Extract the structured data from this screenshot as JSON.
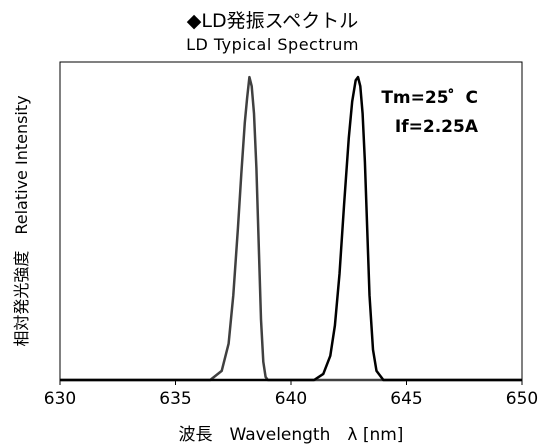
{
  "chart_data": {
    "type": "line",
    "title": "◆LD発振スペクトル",
    "subtitle": "LD Typical Spectrum",
    "xlabel": "波長　Wavelength　λ [nm]",
    "ylabel": "相対発光強度　Relative Intensity",
    "xlim": [
      630,
      650
    ],
    "ylim": [
      0,
      1.05
    ],
    "x_ticks": [
      630,
      635,
      640,
      645,
      650
    ],
    "y_ticks": [],
    "grid": false,
    "legend": "none",
    "annotations": [
      "Tm=25゜C",
      "If=2.25A"
    ],
    "series": [
      {
        "color": "#404040",
        "x": [
          630,
          636.5,
          637.0,
          637.3,
          637.5,
          637.7,
          637.85,
          638.0,
          638.1,
          638.2,
          638.3,
          638.4,
          638.5,
          638.6,
          638.7,
          638.8,
          638.9,
          639.0,
          650
        ],
        "y": [
          0.0,
          0.0,
          0.03,
          0.12,
          0.28,
          0.5,
          0.68,
          0.85,
          0.93,
          1.0,
          0.97,
          0.88,
          0.7,
          0.45,
          0.2,
          0.06,
          0.01,
          0.0,
          0.0
        ]
      },
      {
        "color": "#000000",
        "x": [
          630,
          641.0,
          641.4,
          641.7,
          641.9,
          642.1,
          642.3,
          642.5,
          642.65,
          642.8,
          642.9,
          643.0,
          643.1,
          643.2,
          643.3,
          643.4,
          643.55,
          643.7,
          644.0,
          650
        ],
        "y": [
          0.0,
          0.0,
          0.02,
          0.08,
          0.18,
          0.35,
          0.58,
          0.8,
          0.92,
          0.99,
          1.0,
          0.97,
          0.88,
          0.72,
          0.5,
          0.28,
          0.1,
          0.03,
          0.0,
          0.0
        ]
      }
    ]
  }
}
